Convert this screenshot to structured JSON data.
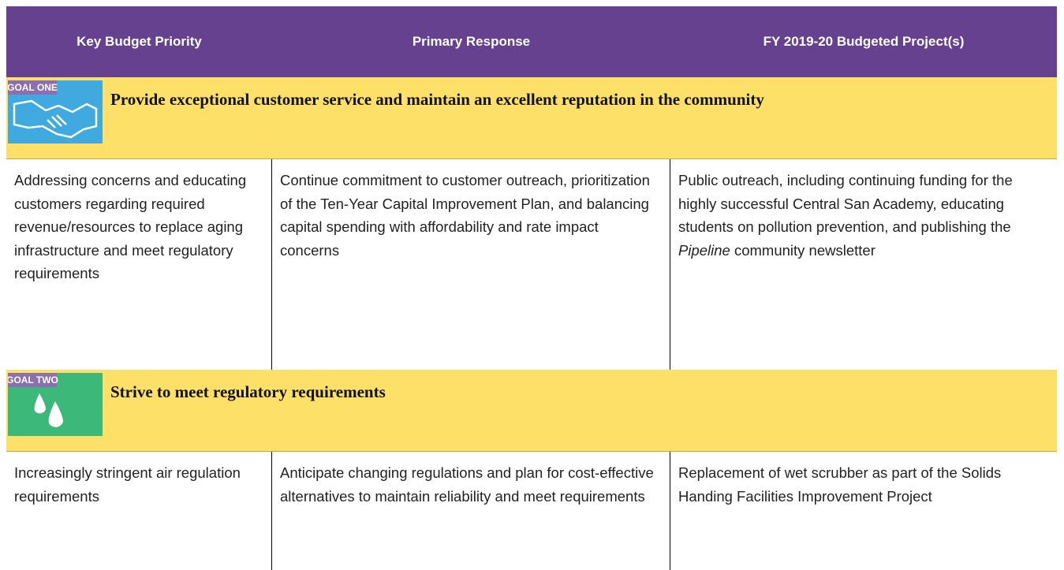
{
  "header": [
    "Key Budget Priority",
    "Primary Response",
    "FY 2019-20 Budgeted Project(s)"
  ],
  "sections": [
    {
      "badge": "GOAL ONE",
      "goal": "Provide exceptional customer service and maintain an excellent reputation in the community",
      "row": [
        "Addressing concerns and educating customers regarding required revenue/resources to replace aging infrastructure and meet regulatory requirements",
        "Continue commitment to customer outreach, prioritization of the Ten-Year Capital Improvement Plan, and balancing capital spending with affordability and rate impact concerns",
        {
          "text": "Public outreach, including continuing funding for the highly successful Central San Academy, educating students on pollution prevention, and publishing the ",
          "italic": "Pipeline",
          "rest": " community newsletter"
        }
      ]
    },
    {
      "badge": "GOAL TWO",
      "goal": "Strive to meet regulatory requirements",
      "row": [
        "Increasingly stringent air regulation requirements",
        "Anticipate changing regulations and plan for cost-effective alternatives to maintain reliability and meet requirements",
        {
          "text": "Replacement of wet scrubber as part of the Solids Handing Facilities Improvement Project"
        }
      ]
    }
  ]
}
